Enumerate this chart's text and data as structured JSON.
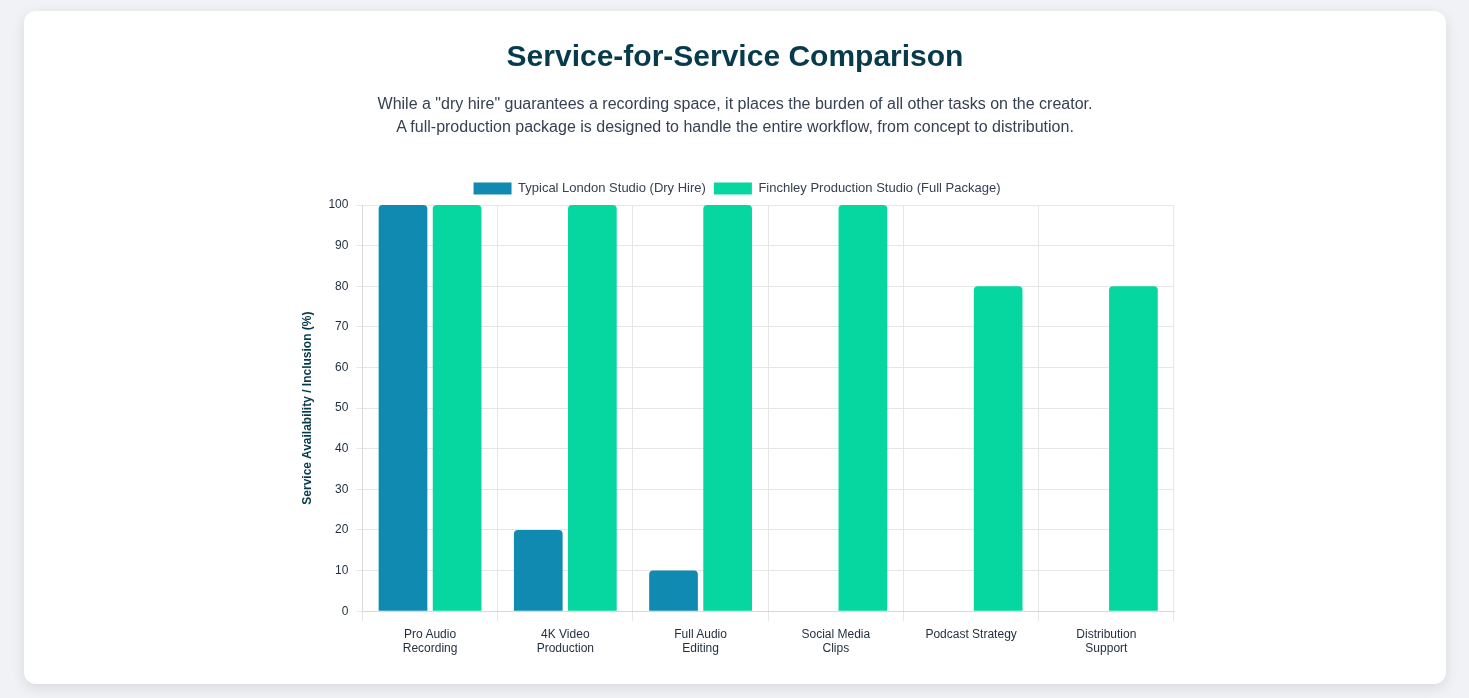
{
  "chart_data": {
    "type": "bar",
    "title": "Service-for-Service Comparison",
    "subtitle": "While a \"dry hire\" guarantees a recording space, it places the burden of all other tasks on the creator. A full-production package is designed to handle the entire workflow, from concept to distribution.",
    "ylabel": "Service Availability / Inclusion (%)",
    "categories": [
      "Pro Audio Recording",
      "4K Video Production",
      "Full Audio Editing",
      "Social Media Clips",
      "Podcast Strategy",
      "Distribution Support"
    ],
    "series": [
      {
        "name": "Typical London Studio (Dry Hire)",
        "color": "#118ab2",
        "values": [
          100,
          20,
          10,
          0,
          0,
          0
        ]
      },
      {
        "name": "Finchley Production Studio (Full Package)",
        "color": "#06d6a0",
        "values": [
          100,
          100,
          100,
          100,
          80,
          80
        ]
      }
    ],
    "ylim": [
      0,
      100
    ],
    "yticks": [
      0,
      10,
      20,
      30,
      40,
      50,
      60,
      70,
      80,
      90,
      100
    ],
    "grid": true,
    "legend": "top"
  }
}
